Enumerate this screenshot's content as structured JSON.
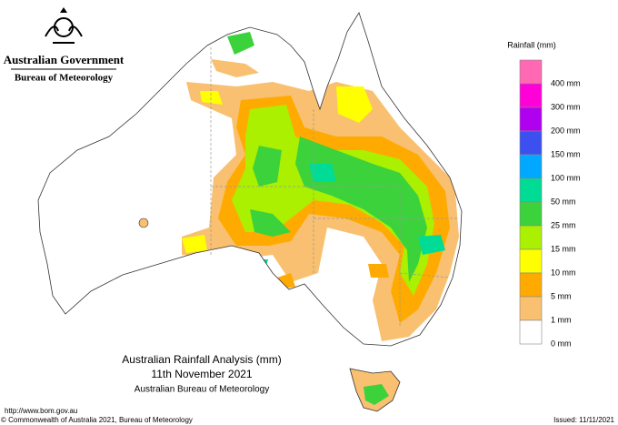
{
  "header": {
    "government": "Australian Government",
    "bureau": "Bureau of Meteorology"
  },
  "legend": {
    "title": "Rainfall (mm)",
    "items": [
      {
        "label": "400 mm",
        "color": "#ff69b4"
      },
      {
        "label": "300 mm",
        "color": "#ff00d8"
      },
      {
        "label": "200 mm",
        "color": "#b000f0"
      },
      {
        "label": "150 mm",
        "color": "#3c50f0"
      },
      {
        "label": "100 mm",
        "color": "#00a8ff"
      },
      {
        "label": "50 mm",
        "color": "#00dc96"
      },
      {
        "label": "25 mm",
        "color": "#3cd23c"
      },
      {
        "label": "15 mm",
        "color": "#aaf000"
      },
      {
        "label": "10 mm",
        "color": "#ffff00"
      },
      {
        "label": "5 mm",
        "color": "#ffaa00"
      },
      {
        "label": "1 mm",
        "color": "#f8c070"
      },
      {
        "label": "0 mm",
        "color": "#ffffff"
      }
    ]
  },
  "caption": {
    "title": "Australian Rainfall Analysis (mm)",
    "date": "11th November 2021",
    "agency": "Australian Bureau of Meteorology"
  },
  "footer": {
    "url": "http://www.bom.gov.au",
    "copyright": "© Commonwealth of Australia 2021, Bureau of Meteorology",
    "issued": "Issued: 11/11/2021"
  }
}
